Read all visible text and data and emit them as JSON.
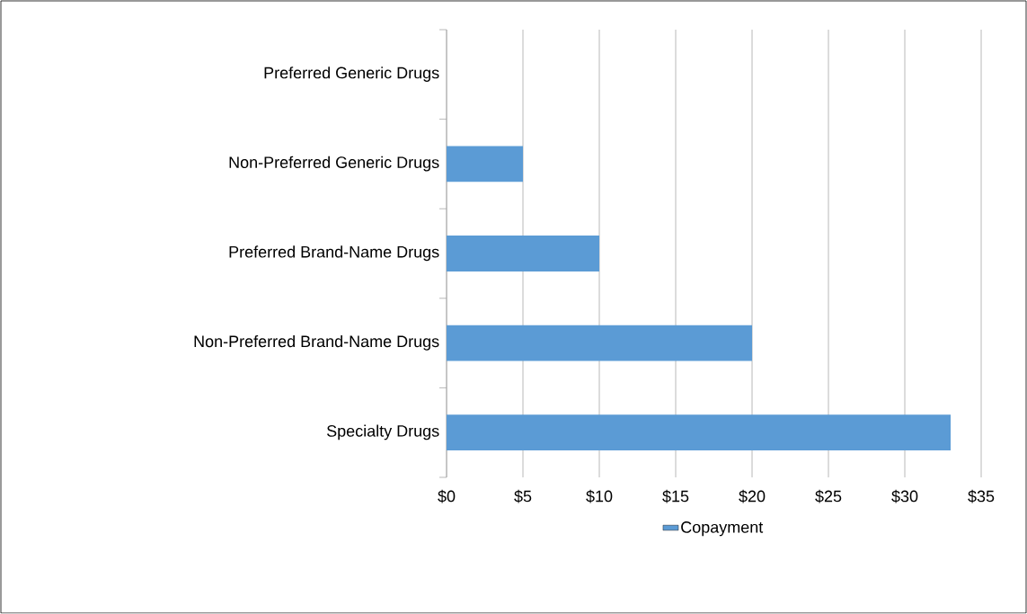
{
  "chart_data": {
    "type": "bar",
    "orientation": "horizontal",
    "categories": [
      "Preferred Generic Drugs",
      "Non-Preferred Generic Drugs",
      "Preferred Brand-Name Drugs",
      "Non-Preferred Brand-Name Drugs",
      "Specialty Drugs"
    ],
    "series": [
      {
        "name": "Copayment",
        "color": "#5b9bd5",
        "values": [
          0,
          5,
          10,
          20,
          33
        ]
      }
    ],
    "xlim": [
      0,
      35
    ],
    "xticks": [
      {
        "value": 0,
        "label": "$0"
      },
      {
        "value": 5,
        "label": "$5"
      },
      {
        "value": 10,
        "label": "$10"
      },
      {
        "value": 15,
        "label": "$15"
      },
      {
        "value": 20,
        "label": "$20"
      },
      {
        "value": 25,
        "label": "$25"
      },
      {
        "value": 30,
        "label": "$30"
      },
      {
        "value": 35,
        "label": "$35"
      }
    ],
    "grid": "x",
    "legend": "bottom"
  }
}
